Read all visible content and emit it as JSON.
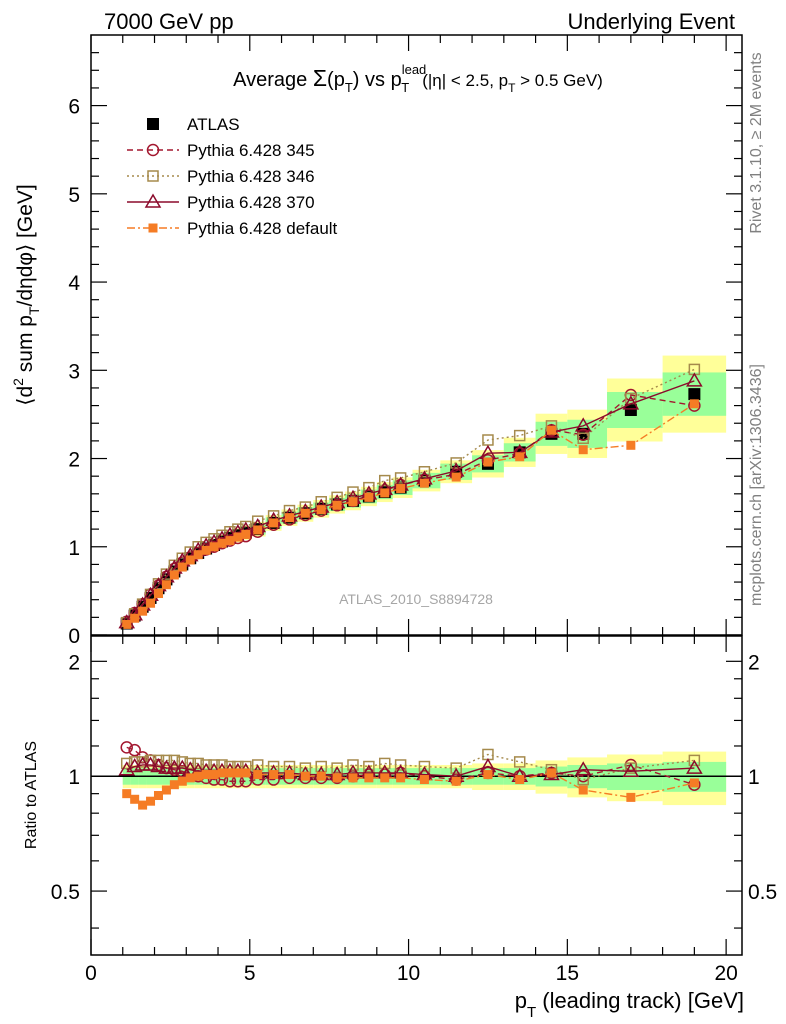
{
  "header": {
    "left": "7000 GeV pp",
    "right": "Underlying Event"
  },
  "side": {
    "rivet": "Rivet 3.1.10, ≥ 2M events",
    "mcplots": "mcplots.cern.ch [arXiv:1306.3436]"
  },
  "chart_data": {
    "type": "scatter",
    "title": "Average Σ(p_T) vs p_T^lead (|η| < 2.5, p_T > 0.5 GeV)",
    "watermark": "ATLAS_2010_S8894728",
    "xlabel": "p_T (leading track) [GeV]",
    "ylabel": "⟨d² sum p_T/dηdφ⟩ [GeV]",
    "ratio_ylabel": "Ratio to ATLAS",
    "xlim": [
      0,
      20.5
    ],
    "ylim": [
      0,
      6.8
    ],
    "ratio_ylim": [
      0.34,
      2.33
    ],
    "ratio_scale": "log",
    "x_ticks": [
      "0",
      "5",
      "10",
      "15",
      "20"
    ],
    "y_ticks": [
      "0",
      "1",
      "2",
      "3",
      "4",
      "5",
      "6"
    ],
    "ratio_ticks": [
      "0.5",
      "1",
      "2"
    ],
    "legend_position": "top-left",
    "x": [
      1.125,
      1.375,
      1.625,
      1.875,
      2.125,
      2.375,
      2.625,
      2.875,
      3.125,
      3.375,
      3.625,
      3.875,
      4.125,
      4.375,
      4.625,
      4.875,
      5.25,
      5.75,
      6.25,
      6.75,
      7.25,
      7.75,
      8.25,
      8.75,
      9.25,
      9.75,
      10.5,
      11.5,
      12.5,
      13.5,
      14.5,
      15.5,
      17.0,
      19.0
    ],
    "series": [
      {
        "name": "ATLAS",
        "color": "#000000",
        "values": [
          0.13,
          0.22,
          0.32,
          0.42,
          0.53,
          0.63,
          0.72,
          0.8,
          0.87,
          0.93,
          0.98,
          1.02,
          1.06,
          1.1,
          1.13,
          1.16,
          1.2,
          1.27,
          1.33,
          1.38,
          1.43,
          1.48,
          1.52,
          1.57,
          1.62,
          1.67,
          1.75,
          1.85,
          1.94,
          2.07,
          2.28,
          2.28,
          2.55,
          2.73
        ],
        "band_inner": [
          0.05,
          0.05,
          0.05,
          0.05,
          0.05,
          0.05,
          0.05,
          0.05,
          0.05,
          0.05,
          0.05,
          0.05,
          0.05,
          0.05,
          0.05,
          0.05,
          0.05,
          0.05,
          0.05,
          0.05,
          0.05,
          0.05,
          0.05,
          0.05,
          0.05,
          0.05,
          0.05,
          0.05,
          0.05,
          0.05,
          0.06,
          0.07,
          0.08,
          0.09
        ],
        "band_outer": [
          0.07,
          0.07,
          0.07,
          0.07,
          0.07,
          0.07,
          0.07,
          0.07,
          0.07,
          0.07,
          0.07,
          0.07,
          0.07,
          0.07,
          0.07,
          0.07,
          0.07,
          0.07,
          0.07,
          0.07,
          0.07,
          0.07,
          0.07,
          0.07,
          0.07,
          0.07,
          0.07,
          0.07,
          0.08,
          0.08,
          0.1,
          0.12,
          0.14,
          0.16
        ]
      },
      {
        "name": "Pythia 6.428 345",
        "color": "#a3172f",
        "values": [
          0.15,
          0.25,
          0.35,
          0.46,
          0.56,
          0.66,
          0.75,
          0.82,
          0.88,
          0.93,
          0.97,
          1.0,
          1.04,
          1.07,
          1.1,
          1.12,
          1.17,
          1.25,
          1.31,
          1.36,
          1.41,
          1.47,
          1.52,
          1.58,
          1.64,
          1.7,
          1.76,
          1.82,
          1.98,
          2.06,
          2.32,
          2.27,
          2.72,
          2.6
        ],
        "ratio": [
          1.19,
          1.17,
          1.12,
          1.1,
          1.07,
          1.05,
          1.04,
          1.03,
          1.01,
          1.0,
          0.99,
          0.98,
          0.98,
          0.97,
          0.97,
          0.97,
          0.98,
          0.98,
          0.99,
          0.99,
          0.99,
          0.99,
          1.0,
          1.01,
          1.01,
          1.02,
          1.0,
          0.98,
          1.02,
          1.0,
          1.02,
          1.0,
          1.07,
          0.95
        ]
      },
      {
        "name": "Pythia 6.428 346",
        "color": "#a58a4c",
        "values": [
          0.14,
          0.24,
          0.35,
          0.46,
          0.58,
          0.69,
          0.79,
          0.87,
          0.94,
          1.0,
          1.05,
          1.09,
          1.13,
          1.17,
          1.2,
          1.23,
          1.29,
          1.35,
          1.41,
          1.45,
          1.51,
          1.56,
          1.62,
          1.67,
          1.75,
          1.78,
          1.85,
          1.95,
          2.21,
          2.26,
          2.37,
          2.23,
          2.68,
          3.01
        ],
        "ratio": [
          1.08,
          1.09,
          1.09,
          1.1,
          1.1,
          1.1,
          1.1,
          1.09,
          1.08,
          1.08,
          1.07,
          1.07,
          1.07,
          1.06,
          1.06,
          1.06,
          1.07,
          1.06,
          1.06,
          1.05,
          1.06,
          1.05,
          1.07,
          1.06,
          1.08,
          1.07,
          1.06,
          1.05,
          1.14,
          1.09,
          1.04,
          0.98,
          1.05,
          1.1
        ]
      },
      {
        "name": "Pythia 6.428 370",
        "color": "#8b0a2b",
        "values": [
          0.14,
          0.23,
          0.34,
          0.45,
          0.56,
          0.66,
          0.76,
          0.84,
          0.9,
          0.96,
          1.01,
          1.05,
          1.09,
          1.13,
          1.16,
          1.19,
          1.23,
          1.3,
          1.35,
          1.4,
          1.45,
          1.5,
          1.55,
          1.6,
          1.65,
          1.7,
          1.77,
          1.86,
          2.06,
          2.07,
          2.3,
          2.37,
          2.62,
          2.88
        ],
        "ratio": [
          1.04,
          1.06,
          1.07,
          1.07,
          1.06,
          1.05,
          1.05,
          1.05,
          1.04,
          1.03,
          1.03,
          1.03,
          1.03,
          1.03,
          1.03,
          1.03,
          1.02,
          1.02,
          1.02,
          1.01,
          1.01,
          1.01,
          1.02,
          1.02,
          1.02,
          1.02,
          1.01,
          1.0,
          1.06,
          1.0,
          1.01,
          1.04,
          1.03,
          1.05
        ]
      },
      {
        "name": "Pythia 6.428 default",
        "color": "#f57c25",
        "values": [
          0.12,
          0.19,
          0.27,
          0.36,
          0.47,
          0.57,
          0.68,
          0.77,
          0.85,
          0.91,
          0.96,
          1.0,
          1.04,
          1.07,
          1.11,
          1.14,
          1.19,
          1.27,
          1.33,
          1.38,
          1.42,
          1.47,
          1.51,
          1.56,
          1.61,
          1.66,
          1.72,
          1.79,
          1.96,
          2.02,
          2.32,
          2.1,
          2.15,
          2.62
        ],
        "ratio": [
          0.9,
          0.87,
          0.84,
          0.86,
          0.89,
          0.92,
          0.95,
          0.97,
          0.99,
          1.0,
          1.01,
          1.01,
          1.02,
          1.02,
          1.02,
          1.02,
          1.01,
          1.01,
          1.01,
          1.0,
          1.0,
          0.99,
          0.99,
          0.99,
          0.99,
          0.99,
          0.98,
          0.97,
          1.01,
          0.98,
          1.02,
          0.92,
          0.88,
          0.96
        ]
      }
    ]
  }
}
